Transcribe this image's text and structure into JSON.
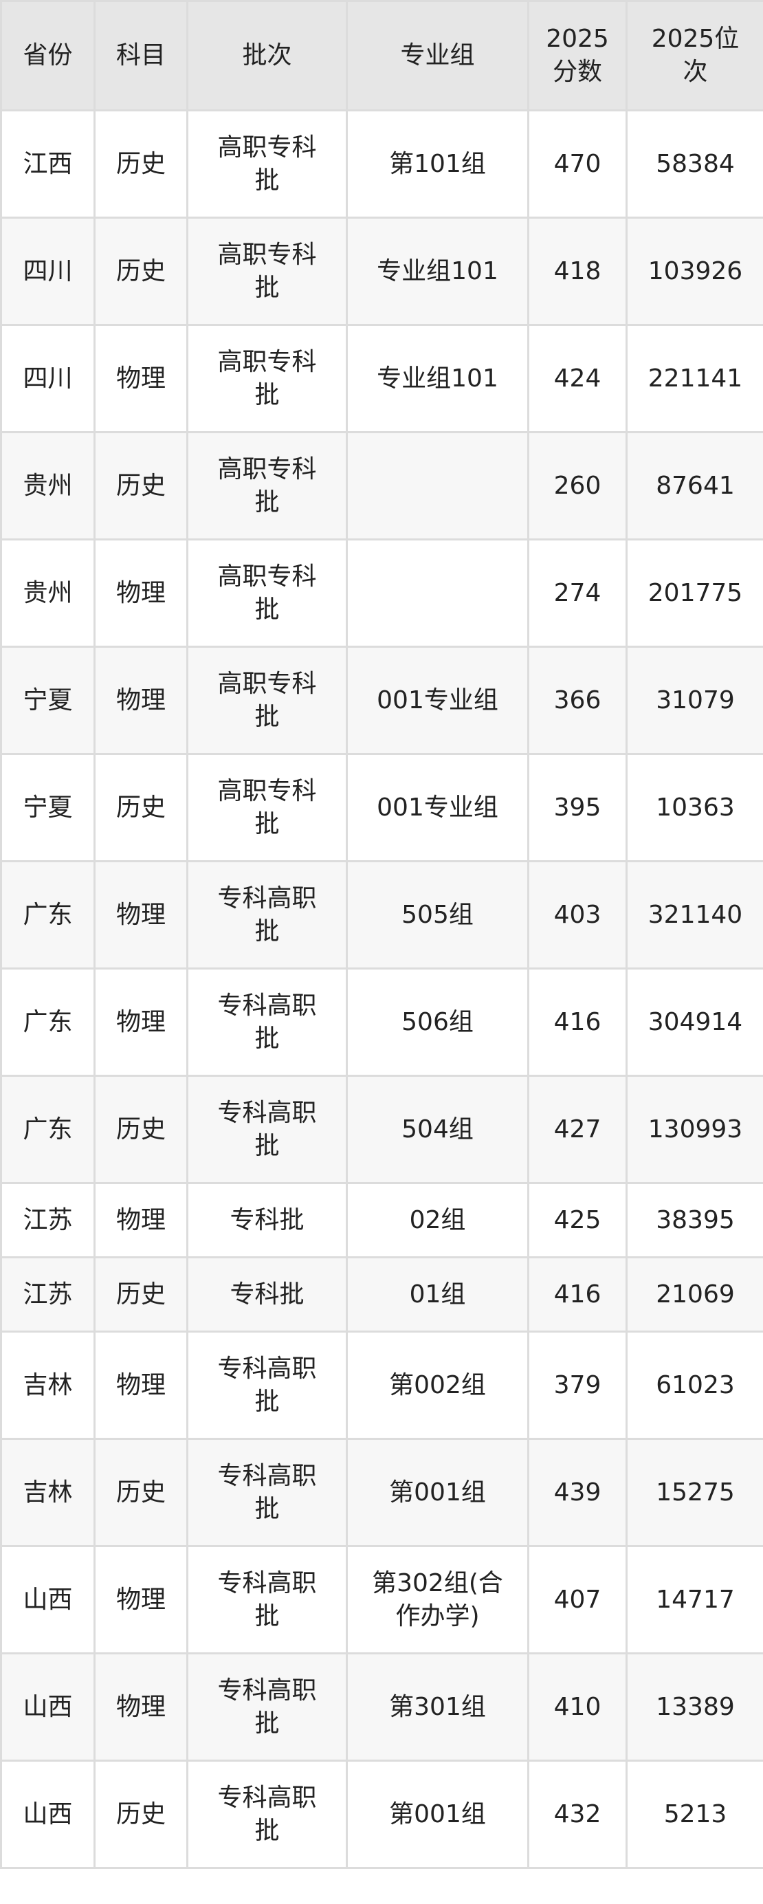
{
  "headers": [
    "省份",
    "科目",
    "批次",
    "专业组",
    "2025分数",
    "2025位次"
  ],
  "rows": [
    [
      "江西",
      "历史",
      "高职专科批",
      "第101组",
      "470",
      "58384"
    ],
    [
      "四川",
      "历史",
      "高职专科批",
      "专业组101",
      "418",
      "103926"
    ],
    [
      "四川",
      "物理",
      "高职专科批",
      "专业组101",
      "424",
      "221141"
    ],
    [
      "贵州",
      "历史",
      "高职专科批",
      "",
      "260",
      "87641"
    ],
    [
      "贵州",
      "物理",
      "高职专科批",
      "",
      "274",
      "201775"
    ],
    [
      "宁夏",
      "物理",
      "高职专科批",
      "001专业组",
      "366",
      "31079"
    ],
    [
      "宁夏",
      "历史",
      "高职专科批",
      "001专业组",
      "395",
      "10363"
    ],
    [
      "广东",
      "物理",
      "专科高职批",
      "505组",
      "403",
      "321140"
    ],
    [
      "广东",
      "物理",
      "专科高职批",
      "506组",
      "416",
      "304914"
    ],
    [
      "广东",
      "历史",
      "专科高职批",
      "504组",
      "427",
      "130993"
    ],
    [
      "江苏",
      "物理",
      "专科批",
      "02组",
      "425",
      "38395"
    ],
    [
      "江苏",
      "历史",
      "专科批",
      "01组",
      "416",
      "21069"
    ],
    [
      "吉林",
      "物理",
      "专科高职批",
      "第002组",
      "379",
      "61023"
    ],
    [
      "吉林",
      "历史",
      "专科高职批",
      "第001组",
      "439",
      "15275"
    ],
    [
      "山西",
      "物理",
      "专科高职批",
      "第302组(合作办学)",
      "407",
      "14717"
    ],
    [
      "山西",
      "物理",
      "专科高职批",
      "第301组",
      "410",
      "13389"
    ],
    [
      "山西",
      "历史",
      "专科高职批",
      "第001组",
      "432",
      "5213"
    ]
  ]
}
